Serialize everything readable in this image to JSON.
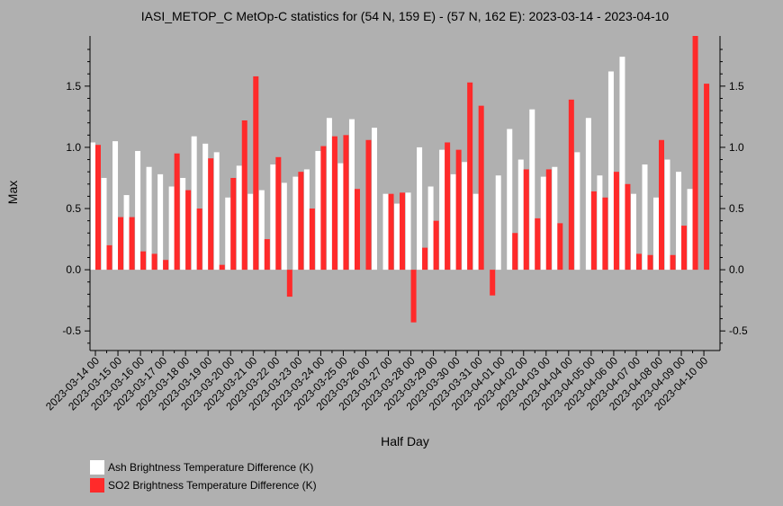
{
  "chart_data": {
    "type": "bar",
    "title": "IASI_METOP_C MetOp-C statistics for (54 N, 159 E) - (57 N, 162 E): 2023-03-14 - 2023-04-10",
    "xlabel": "Half Day",
    "ylabel": "Max",
    "ylim": [
      -0.66,
      1.91
    ],
    "yticks": [
      -0.5,
      0.0,
      0.5,
      1.0,
      1.5
    ],
    "ytick_labels": [
      "-0.5",
      "0.0",
      "0.5",
      "1.0",
      "1.5"
    ],
    "grid": false,
    "legend_position": "bottom-left",
    "categories": [
      "2023-03-14 00",
      "2023-03-14 12",
      "2023-03-15 00",
      "2023-03-15 12",
      "2023-03-16 00",
      "2023-03-16 12",
      "2023-03-17 00",
      "2023-03-17 12",
      "2023-03-18 00",
      "2023-03-18 12",
      "2023-03-19 00",
      "2023-03-19 12",
      "2023-03-20 00",
      "2023-03-20 12",
      "2023-03-21 00",
      "2023-03-21 12",
      "2023-03-22 00",
      "2023-03-22 12",
      "2023-03-23 00",
      "2023-03-23 12",
      "2023-03-24 00",
      "2023-03-24 12",
      "2023-03-25 00",
      "2023-03-25 12",
      "2023-03-26 00",
      "2023-03-26 12",
      "2023-03-27 00",
      "2023-03-27 12",
      "2023-03-28 00",
      "2023-03-28 12",
      "2023-03-29 00",
      "2023-03-29 12",
      "2023-03-30 00",
      "2023-03-30 12",
      "2023-03-31 00",
      "2023-03-31 12",
      "2023-04-01 00",
      "2023-04-01 12",
      "2023-04-02 00",
      "2023-04-02 12",
      "2023-04-03 00",
      "2023-04-03 12",
      "2023-04-04 00",
      "2023-04-04 12",
      "2023-04-05 00",
      "2023-04-05 12",
      "2023-04-06 00",
      "2023-04-06 12",
      "2023-04-07 00",
      "2023-04-07 12",
      "2023-04-08 00",
      "2023-04-08 12",
      "2023-04-09 00",
      "2023-04-09 12",
      "2023-04-10 00"
    ],
    "xtick_labels": [
      "2023-03-14 00",
      "2023-03-15 00",
      "2023-03-16 00",
      "2023-03-17 00",
      "2023-03-18 00",
      "2023-03-19 00",
      "2023-03-20 00",
      "2023-03-21 00",
      "2023-03-22 00",
      "2023-03-23 00",
      "2023-03-24 00",
      "2023-03-25 00",
      "2023-03-26 00",
      "2023-03-27 00",
      "2023-03-28 00",
      "2023-03-29 00",
      "2023-03-30 00",
      "2023-03-31 00",
      "2023-04-01 00",
      "2023-04-02 00",
      "2023-04-03 00",
      "2023-04-04 00",
      "2023-04-05 00",
      "2023-04-06 00",
      "2023-04-07 00",
      "2023-04-08 00",
      "2023-04-09 00",
      "2023-04-10 00"
    ],
    "series": [
      {
        "name": "Ash Brightness Temperature Difference (K)",
        "color": "#ffffff",
        "values": [
          1.04,
          0.75,
          1.05,
          0.61,
          0.97,
          0.84,
          0.78,
          0.68,
          0.75,
          1.09,
          1.03,
          0.96,
          0.59,
          0.85,
          0.62,
          0.65,
          0.86,
          0.71,
          0.76,
          0.82,
          0.97,
          1.24,
          0.87,
          1.23,
          null,
          1.16,
          0.62,
          0.54,
          0.63,
          1.0,
          0.68,
          0.98,
          0.78,
          0.88,
          0.62,
          null,
          0.77,
          1.15,
          0.9,
          1.31,
          0.76,
          0.84,
          null,
          0.96,
          1.24,
          0.77,
          1.62,
          1.74,
          0.62,
          0.86,
          0.59,
          0.9,
          0.8,
          0.66,
          null
        ]
      },
      {
        "name": "SO2 Brightness Temperature Difference (K)",
        "color": "#ff2a2a",
        "values": [
          1.02,
          0.2,
          0.43,
          0.43,
          0.15,
          0.13,
          0.08,
          0.95,
          0.65,
          0.5,
          0.91,
          0.04,
          0.75,
          1.22,
          1.58,
          0.25,
          0.92,
          -0.22,
          0.8,
          0.5,
          1.01,
          1.09,
          1.1,
          0.66,
          1.06,
          null,
          0.62,
          0.63,
          -0.43,
          0.18,
          0.4,
          1.04,
          0.98,
          1.53,
          1.34,
          -0.21,
          null,
          0.3,
          0.82,
          0.42,
          0.82,
          0.38,
          1.39,
          null,
          0.64,
          0.59,
          0.8,
          0.7,
          0.13,
          0.12,
          1.06,
          0.12,
          0.36,
          1.92,
          1.52
        ]
      }
    ]
  }
}
